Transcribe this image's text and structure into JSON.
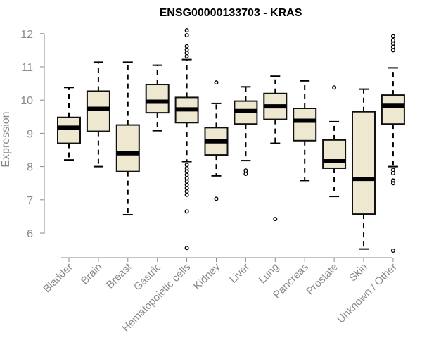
{
  "chart_data": {
    "type": "box",
    "title": "ENSG00000133703 - KRAS",
    "xlabel": "",
    "ylabel": "Expression",
    "ylim": [
      5.3,
      12.3
    ],
    "yticks": [
      6,
      7,
      8,
      9,
      10,
      11,
      12
    ],
    "grid": false,
    "categories": [
      "Bladder",
      "Brain",
      "Breast",
      "Gastric",
      "Hematopoietic cells",
      "Kidney",
      "Liver",
      "Lung",
      "Pancreas",
      "Prostate",
      "Skin",
      "Unknown / Other"
    ],
    "boxes": [
      {
        "category": "Bladder",
        "whisker_low": 8.2,
        "q1": 8.7,
        "median": 9.17,
        "q3": 9.48,
        "whisker_high": 10.38,
        "outliers": []
      },
      {
        "category": "Brain",
        "whisker_low": 8.0,
        "q1": 9.06,
        "median": 9.74,
        "q3": 10.27,
        "whisker_high": 11.14,
        "outliers": []
      },
      {
        "category": "Breast",
        "whisker_low": 6.55,
        "q1": 7.85,
        "median": 8.4,
        "q3": 9.25,
        "whisker_high": 11.14,
        "outliers": []
      },
      {
        "category": "Gastric",
        "whisker_low": 9.08,
        "q1": 9.62,
        "median": 9.95,
        "q3": 10.47,
        "whisker_high": 11.05,
        "outliers": []
      },
      {
        "category": "Hematopoietic cells",
        "whisker_low": 8.15,
        "q1": 9.32,
        "median": 9.72,
        "q3": 10.08,
        "whisker_high": 11.22,
        "outliers": [
          5.55,
          6.65,
          7.15,
          7.25,
          7.35,
          7.45,
          7.55,
          7.65,
          7.75,
          7.85,
          7.95,
          8.05,
          11.32,
          11.42,
          11.52,
          11.62,
          11.95,
          12.1
        ]
      },
      {
        "category": "Kidney",
        "whisker_low": 7.72,
        "q1": 8.35,
        "median": 8.76,
        "q3": 9.17,
        "whisker_high": 9.9,
        "outliers": [
          7.03,
          10.53
        ]
      },
      {
        "category": "Liver",
        "whisker_low": 8.18,
        "q1": 9.28,
        "median": 9.67,
        "q3": 9.97,
        "whisker_high": 10.4,
        "outliers": [
          7.78,
          7.88
        ]
      },
      {
        "category": "Lung",
        "whisker_low": 8.7,
        "q1": 9.42,
        "median": 9.81,
        "q3": 10.2,
        "whisker_high": 10.72,
        "outliers": [
          6.42
        ]
      },
      {
        "category": "Pancreas",
        "whisker_low": 7.58,
        "q1": 8.78,
        "median": 9.38,
        "q3": 9.75,
        "whisker_high": 10.58,
        "outliers": []
      },
      {
        "category": "Prostate",
        "whisker_low": 7.1,
        "q1": 7.95,
        "median": 8.16,
        "q3": 8.8,
        "whisker_high": 9.35,
        "outliers": [
          10.38
        ]
      },
      {
        "category": "Skin",
        "whisker_low": 5.52,
        "q1": 6.57,
        "median": 7.63,
        "q3": 9.65,
        "whisker_high": 10.33,
        "outliers": []
      },
      {
        "category": "Unknown / Other",
        "whisker_low": 8.0,
        "q1": 9.28,
        "median": 9.83,
        "q3": 10.15,
        "whisker_high": 10.97,
        "outliers": [
          5.47,
          7.5,
          7.58,
          7.8,
          7.9,
          11.5,
          11.6,
          11.7,
          11.8,
          11.92
        ]
      }
    ]
  }
}
